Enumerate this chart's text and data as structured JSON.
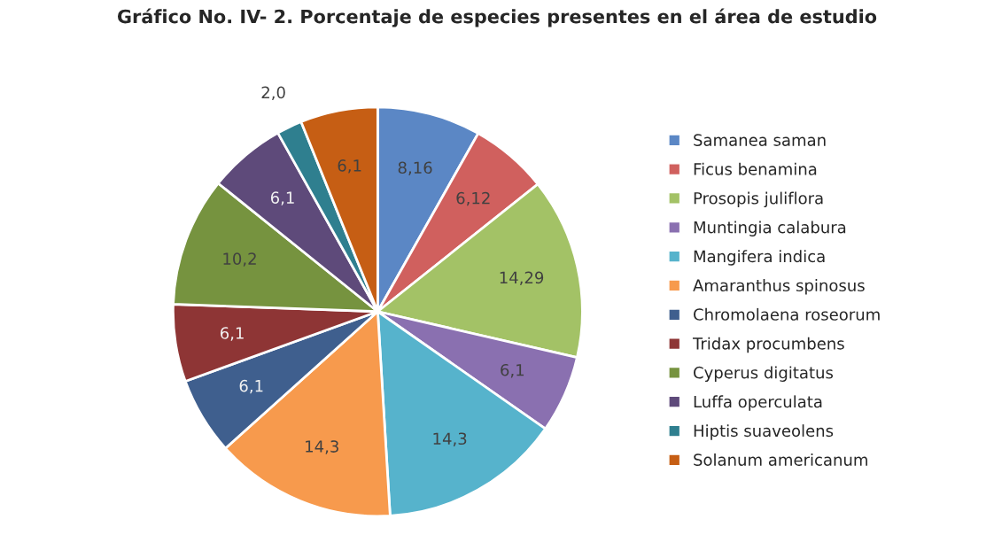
{
  "chart_data": {
    "type": "pie",
    "title": "Gráfico No. IV- 2. Porcentaje de especies presentes en el área de estudio",
    "categories": [
      "Samanea saman",
      "Ficus benamina",
      "Prosopis juliflora",
      "Muntingia calabura",
      "Mangifera indica",
      "Amaranthus spinosus",
      "Chromolaena roseorum",
      "Tridax procumbens",
      "Cyperus digitatus",
      "Luffa operculata",
      "Hiptis suaveolens",
      "Solanum americanum"
    ],
    "values": [
      8.16,
      6.12,
      14.29,
      6.1,
      14.3,
      14.3,
      6.1,
      6.1,
      10.2,
      6.1,
      2.0,
      6.1
    ],
    "value_labels": [
      "8,16",
      "6,12",
      "14,29",
      "6,1",
      "14,3",
      "14,3",
      "6,1",
      "6,1",
      "10,2",
      "6,1",
      "2,0",
      "6,1"
    ],
    "colors": [
      "#5b87c5",
      "#d0605e",
      "#a3c266",
      "#8a70b0",
      "#56b3cc",
      "#f79a4d",
      "#3f5f8e",
      "#8e3535",
      "#76933f",
      "#5e4a7a",
      "#2f7f8f",
      "#c65e14"
    ],
    "legend": "right"
  }
}
